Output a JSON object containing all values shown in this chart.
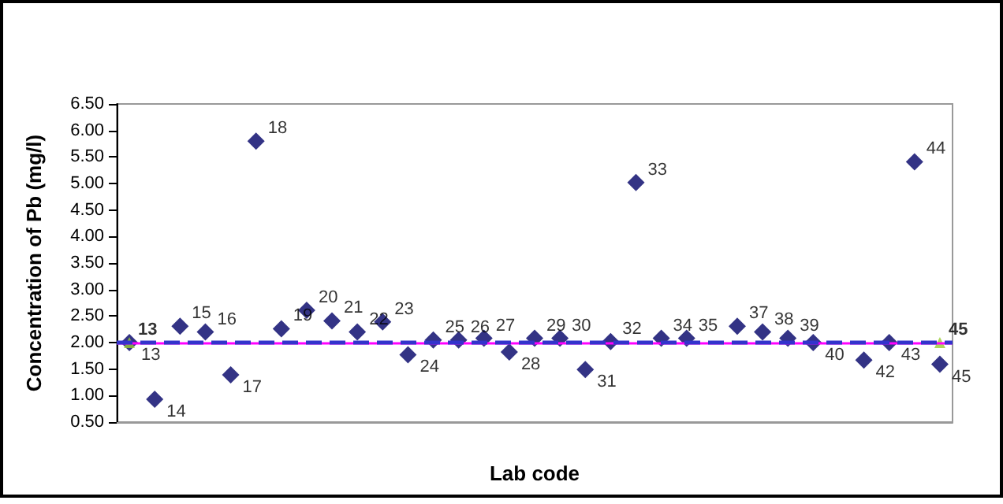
{
  "chart_data": {
    "type": "scatter",
    "xlabel": "Lab code",
    "ylabel": "Concentration of Pb (mg/l)",
    "categories": [
      null,
      null,
      null,
      null,
      null,
      null,
      null,
      null,
      null,
      null,
      null,
      null,
      null,
      null,
      null,
      null,
      null,
      null,
      null,
      null,
      null,
      null,
      null,
      null,
      null,
      null,
      null,
      null,
      null,
      null,
      null,
      null,
      null
    ],
    "series": [
      {
        "name": "13",
        "color": "#000066",
        "marker": "diamond",
        "values": [
          2.0,
          null,
          null,
          null,
          null,
          null,
          null,
          null,
          null,
          null,
          null,
          null,
          null,
          null,
          null,
          null,
          null,
          null,
          null,
          null,
          null,
          null,
          null,
          null,
          null,
          null,
          null,
          null,
          null,
          null,
          null,
          null,
          null
        ]
      },
      {
        "name": "14",
        "color": "#000066",
        "marker": "diamond",
        "values": [
          null,
          0.93,
          null,
          null,
          null,
          null,
          null,
          null,
          null,
          null,
          null,
          null,
          null,
          null,
          null,
          null,
          null,
          null,
          null,
          null,
          null,
          null,
          null,
          null,
          null,
          null,
          null,
          null,
          null,
          null,
          null,
          null,
          null
        ]
      },
      {
        "name": "15",
        "color": "#000066",
        "marker": "diamond",
        "values": [
          null,
          null,
          2.31,
          null,
          null,
          null,
          null,
          null,
          null,
          null,
          null,
          null,
          null,
          null,
          null,
          null,
          null,
          null,
          null,
          null,
          null,
          null,
          null,
          null,
          null,
          null,
          null,
          null,
          null,
          null,
          null,
          null,
          null
        ]
      },
      {
        "name": "16",
        "color": "#000066",
        "marker": "diamond",
        "values": [
          null,
          null,
          null,
          2.2,
          null,
          null,
          null,
          null,
          null,
          null,
          null,
          null,
          null,
          null,
          null,
          null,
          null,
          null,
          null,
          null,
          null,
          null,
          null,
          null,
          null,
          null,
          null,
          null,
          null,
          null,
          null,
          null,
          null
        ]
      },
      {
        "name": "17",
        "color": "#000066",
        "marker": "diamond",
        "values": [
          null,
          null,
          null,
          null,
          1.39,
          null,
          null,
          null,
          null,
          null,
          null,
          null,
          null,
          null,
          null,
          null,
          null,
          null,
          null,
          null,
          null,
          null,
          null,
          null,
          null,
          null,
          null,
          null,
          null,
          null,
          null,
          null,
          null
        ]
      },
      {
        "name": "18",
        "color": "#000066",
        "marker": "diamond",
        "values": [
          null,
          null,
          null,
          null,
          null,
          5.8,
          null,
          null,
          null,
          null,
          null,
          null,
          null,
          null,
          null,
          null,
          null,
          null,
          null,
          null,
          null,
          null,
          null,
          null,
          null,
          null,
          null,
          null,
          null,
          null,
          null,
          null,
          null
        ]
      },
      {
        "name": "19",
        "color": "#000066",
        "marker": "diamond",
        "values": [
          null,
          null,
          null,
          null,
          null,
          null,
          2.26,
          null,
          null,
          null,
          null,
          null,
          null,
          null,
          null,
          null,
          null,
          null,
          null,
          null,
          null,
          null,
          null,
          null,
          null,
          null,
          null,
          null,
          null,
          null,
          null,
          null,
          null
        ]
      },
      {
        "name": "20",
        "color": "#000066",
        "marker": "diamond",
        "values": [
          null,
          null,
          null,
          null,
          null,
          null,
          null,
          2.61,
          null,
          null,
          null,
          null,
          null,
          null,
          null,
          null,
          null,
          null,
          null,
          null,
          null,
          null,
          null,
          null,
          null,
          null,
          null,
          null,
          null,
          null,
          null,
          null,
          null
        ]
      },
      {
        "name": "21",
        "color": "#000066",
        "marker": "diamond",
        "values": [
          null,
          null,
          null,
          null,
          null,
          null,
          null,
          null,
          2.41,
          null,
          null,
          null,
          null,
          null,
          null,
          null,
          null,
          null,
          null,
          null,
          null,
          null,
          null,
          null,
          null,
          null,
          null,
          null,
          null,
          null,
          null,
          null,
          null
        ]
      },
      {
        "name": "22",
        "color": "#000066",
        "marker": "diamond",
        "values": [
          null,
          null,
          null,
          null,
          null,
          null,
          null,
          null,
          null,
          2.2,
          null,
          null,
          null,
          null,
          null,
          null,
          null,
          null,
          null,
          null,
          null,
          null,
          null,
          null,
          null,
          null,
          null,
          null,
          null,
          null,
          null,
          null,
          null
        ]
      },
      {
        "name": "23",
        "color": "#000066",
        "marker": "diamond",
        "values": [
          null,
          null,
          null,
          null,
          null,
          null,
          null,
          null,
          null,
          null,
          2.39,
          null,
          null,
          null,
          null,
          null,
          null,
          null,
          null,
          null,
          null,
          null,
          null,
          null,
          null,
          null,
          null,
          null,
          null,
          null,
          null,
          null,
          null
        ]
      },
      {
        "name": "24",
        "color": "#000066",
        "marker": "diamond",
        "values": [
          null,
          null,
          null,
          null,
          null,
          null,
          null,
          null,
          null,
          null,
          null,
          1.77,
          null,
          null,
          null,
          null,
          null,
          null,
          null,
          null,
          null,
          null,
          null,
          null,
          null,
          null,
          null,
          null,
          null,
          null,
          null,
          null,
          null
        ]
      },
      {
        "name": "25",
        "color": "#000066",
        "marker": "diamond",
        "values": [
          null,
          null,
          null,
          null,
          null,
          null,
          null,
          null,
          null,
          null,
          null,
          null,
          2.05,
          null,
          null,
          null,
          null,
          null,
          null,
          null,
          null,
          null,
          null,
          null,
          null,
          null,
          null,
          null,
          null,
          null,
          null,
          null,
          null
        ]
      },
      {
        "name": "26",
        "color": "#000066",
        "marker": "diamond",
        "values": [
          null,
          null,
          null,
          null,
          null,
          null,
          null,
          null,
          null,
          null,
          null,
          null,
          null,
          2.05,
          null,
          null,
          null,
          null,
          null,
          null,
          null,
          null,
          null,
          null,
          null,
          null,
          null,
          null,
          null,
          null,
          null,
          null,
          null
        ]
      },
      {
        "name": "27",
        "color": "#000066",
        "marker": "diamond",
        "values": [
          null,
          null,
          null,
          null,
          null,
          null,
          null,
          null,
          null,
          null,
          null,
          null,
          null,
          null,
          2.08,
          null,
          null,
          null,
          null,
          null,
          null,
          null,
          null,
          null,
          null,
          null,
          null,
          null,
          null,
          null,
          null,
          null,
          null
        ]
      },
      {
        "name": "28",
        "color": "#000066",
        "marker": "diamond",
        "values": [
          null,
          null,
          null,
          null,
          null,
          null,
          null,
          null,
          null,
          null,
          null,
          null,
          null,
          null,
          null,
          1.82,
          null,
          null,
          null,
          null,
          null,
          null,
          null,
          null,
          null,
          null,
          null,
          null,
          null,
          null,
          null,
          null,
          null
        ]
      },
      {
        "name": "29",
        "color": "#000066",
        "marker": "diamond",
        "values": [
          null,
          null,
          null,
          null,
          null,
          null,
          null,
          null,
          null,
          null,
          null,
          null,
          null,
          null,
          null,
          null,
          2.08,
          null,
          null,
          null,
          null,
          null,
          null,
          null,
          null,
          null,
          null,
          null,
          null,
          null,
          null,
          null,
          null
        ]
      },
      {
        "name": "30",
        "color": "#000066",
        "marker": "diamond",
        "values": [
          null,
          null,
          null,
          null,
          null,
          null,
          null,
          null,
          null,
          null,
          null,
          null,
          null,
          null,
          null,
          null,
          null,
          2.08,
          null,
          null,
          null,
          null,
          null,
          null,
          null,
          null,
          null,
          null,
          null,
          null,
          null,
          null,
          null
        ]
      },
      {
        "name": "31",
        "color": "#000066",
        "marker": "diamond",
        "values": [
          null,
          null,
          null,
          null,
          null,
          null,
          null,
          null,
          null,
          null,
          null,
          null,
          null,
          null,
          null,
          null,
          null,
          null,
          1.49,
          null,
          null,
          null,
          null,
          null,
          null,
          null,
          null,
          null,
          null,
          null,
          null,
          null,
          null
        ]
      },
      {
        "name": "32",
        "color": "#000066",
        "marker": "diamond",
        "values": [
          null,
          null,
          null,
          null,
          null,
          null,
          null,
          null,
          null,
          null,
          null,
          null,
          null,
          null,
          null,
          null,
          null,
          null,
          null,
          2.02,
          null,
          null,
          null,
          null,
          null,
          null,
          null,
          null,
          null,
          null,
          null,
          null,
          null
        ]
      },
      {
        "name": "33",
        "color": "#000066",
        "marker": "diamond",
        "values": [
          null,
          null,
          null,
          null,
          null,
          null,
          null,
          null,
          null,
          null,
          null,
          null,
          null,
          null,
          null,
          null,
          null,
          null,
          null,
          null,
          5.02,
          null,
          null,
          null,
          null,
          null,
          null,
          null,
          null,
          null,
          null,
          null,
          null
        ]
      },
      {
        "name": "34",
        "color": "#000066",
        "marker": "diamond",
        "values": [
          null,
          null,
          null,
          null,
          null,
          null,
          null,
          null,
          null,
          null,
          null,
          null,
          null,
          null,
          null,
          null,
          null,
          null,
          null,
          null,
          null,
          2.08,
          null,
          null,
          null,
          null,
          null,
          null,
          null,
          null,
          null,
          null,
          null
        ]
      },
      {
        "name": "35",
        "color": "#000066",
        "marker": "diamond",
        "values": [
          null,
          null,
          null,
          null,
          null,
          null,
          null,
          null,
          null,
          null,
          null,
          null,
          null,
          null,
          null,
          null,
          null,
          null,
          null,
          null,
          null,
          null,
          2.08,
          null,
          null,
          null,
          null,
          null,
          null,
          null,
          null,
          null,
          null
        ]
      },
      {
        "name": "37",
        "color": "#000066",
        "marker": "diamond",
        "values": [
          null,
          null,
          null,
          null,
          null,
          null,
          null,
          null,
          null,
          null,
          null,
          null,
          null,
          null,
          null,
          null,
          null,
          null,
          null,
          null,
          null,
          null,
          null,
          null,
          2.31,
          null,
          null,
          null,
          null,
          null,
          null,
          null,
          null
        ]
      },
      {
        "name": "38",
        "color": "#000066",
        "marker": "diamond",
        "values": [
          null,
          null,
          null,
          null,
          null,
          null,
          null,
          null,
          null,
          null,
          null,
          null,
          null,
          null,
          null,
          null,
          null,
          null,
          null,
          null,
          null,
          null,
          null,
          null,
          null,
          2.2,
          null,
          null,
          null,
          null,
          null,
          null,
          null
        ]
      },
      {
        "name": "39",
        "color": "#000066",
        "marker": "diamond",
        "values": [
          null,
          null,
          null,
          null,
          null,
          null,
          null,
          null,
          null,
          null,
          null,
          null,
          null,
          null,
          null,
          null,
          null,
          null,
          null,
          null,
          null,
          null,
          null,
          null,
          null,
          null,
          2.08,
          null,
          null,
          null,
          null,
          null,
          null
        ]
      },
      {
        "name": "40",
        "color": "#000066",
        "marker": "diamond",
        "values": [
          null,
          null,
          null,
          null,
          null,
          null,
          null,
          null,
          null,
          null,
          null,
          null,
          null,
          null,
          null,
          null,
          null,
          null,
          null,
          null,
          null,
          null,
          null,
          null,
          null,
          null,
          null,
          2.0,
          null,
          null,
          null,
          null,
          null
        ]
      },
      {
        "name": "42",
        "color": "#000066",
        "marker": "diamond",
        "values": [
          null,
          null,
          null,
          null,
          null,
          null,
          null,
          null,
          null,
          null,
          null,
          null,
          null,
          null,
          null,
          null,
          null,
          null,
          null,
          null,
          null,
          null,
          null,
          null,
          null,
          null,
          null,
          null,
          null,
          1.67,
          null,
          null,
          null
        ]
      },
      {
        "name": "43",
        "color": "#000066",
        "marker": "diamond",
        "values": [
          null,
          null,
          null,
          null,
          null,
          null,
          null,
          null,
          null,
          null,
          null,
          null,
          null,
          null,
          null,
          null,
          null,
          null,
          null,
          null,
          null,
          null,
          null,
          null,
          null,
          null,
          null,
          null,
          null,
          null,
          2.0,
          null,
          null
        ]
      },
      {
        "name": "44",
        "color": "#000066",
        "marker": "diamond",
        "values": [
          null,
          null,
          null,
          null,
          null,
          null,
          null,
          null,
          null,
          null,
          null,
          null,
          null,
          null,
          null,
          null,
          null,
          null,
          null,
          null,
          null,
          null,
          null,
          null,
          null,
          null,
          null,
          null,
          null,
          null,
          null,
          5.41,
          null
        ]
      },
      {
        "name": "45",
        "color": "#000066",
        "marker": "diamond",
        "values": [
          null,
          null,
          null,
          null,
          null,
          null,
          null,
          null,
          null,
          null,
          null,
          null,
          null,
          null,
          null,
          null,
          null,
          null,
          null,
          null,
          null,
          null,
          null,
          null,
          null,
          null,
          null,
          null,
          null,
          null,
          null,
          null,
          1.59
        ]
      },
      {
        "name": "13",
        "color": "#99cc33",
        "marker": "triangle",
        "values": [
          2.0,
          null,
          null,
          null,
          null,
          null,
          null,
          null,
          null,
          null,
          null,
          null,
          null,
          null,
          null,
          null,
          null,
          null,
          null,
          null,
          null,
          null,
          null,
          null,
          null,
          null,
          null,
          null,
          null,
          null,
          null,
          null,
          null
        ]
      },
      {
        "name": "45",
        "color": "#99cc33",
        "marker": "triangle",
        "values": [
          null,
          null,
          null,
          null,
          null,
          null,
          null,
          null,
          null,
          null,
          null,
          null,
          null,
          null,
          null,
          null,
          null,
          null,
          null,
          null,
          null,
          null,
          null,
          null,
          null,
          null,
          null,
          null,
          null,
          null,
          null,
          null,
          2.0
        ]
      }
    ],
    "ref_lines": [
      {
        "axis": "y",
        "value": 2.0,
        "color": "#ff00ff",
        "line_style": "solid"
      },
      {
        "axis": "y",
        "value": 2.0,
        "color": "#3333cc",
        "line_style": "dashed"
      }
    ],
    "ylim": [
      0.5,
      6.5
    ],
    "yticks": [
      {
        "value": 0.5,
        "label": "0.50"
      },
      {
        "value": 1,
        "label": "1.00"
      },
      {
        "value": 1.5,
        "label": "1.50"
      },
      {
        "value": 2,
        "label": "2.00"
      },
      {
        "value": 2.5,
        "label": "2.50"
      },
      {
        "value": 3,
        "label": "3.00"
      },
      {
        "value": 3.5,
        "label": "3.50"
      },
      {
        "value": 4,
        "label": "4.00"
      },
      {
        "value": 4.5,
        "label": "4.50"
      },
      {
        "value": 5,
        "label": "5.00"
      },
      {
        "value": 5.5,
        "label": "5.50"
      },
      {
        "value": 6,
        "label": "6.00"
      },
      {
        "value": 6.5,
        "label": "6.50"
      }
    ],
    "tick_labels": "y",
    "grid": false
  }
}
